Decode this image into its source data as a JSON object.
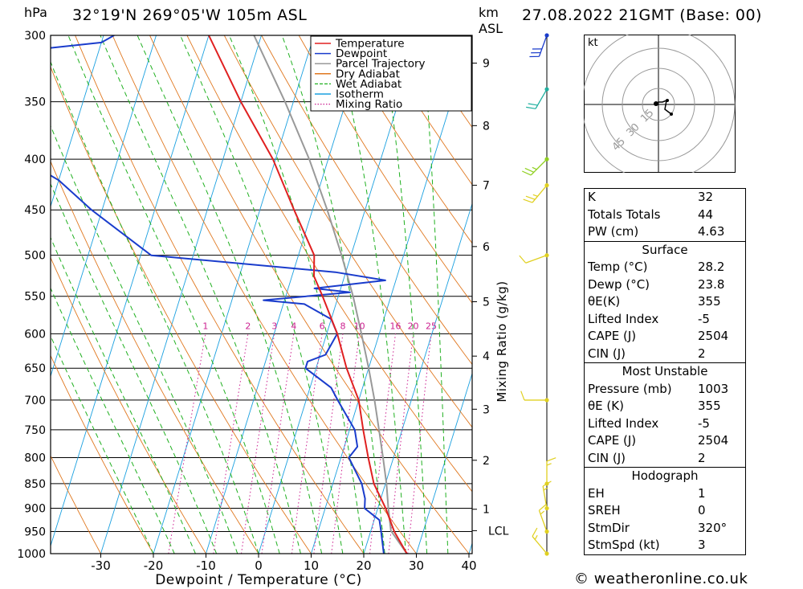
{
  "header": {
    "hpa_label": "hPa",
    "location": "32°19'N  269°05'W  105m  ASL",
    "km_label": "km",
    "asl_label": "ASL",
    "datetime": "27.08.2022  21GMT  (Base: 00)"
  },
  "footer": {
    "copyright": "© weatheronline.co.uk"
  },
  "hodograph": {
    "unit_label": "kt",
    "ring_labels": [
      "15",
      "30",
      "45"
    ]
  },
  "indices": {
    "top": [
      {
        "label": "K",
        "value": "32"
      },
      {
        "label": "Totals Totals",
        "value": "44"
      },
      {
        "label": "PW (cm)",
        "value": "4.63"
      }
    ],
    "surface": {
      "title": "Surface",
      "rows": [
        {
          "label": "Temp (°C)",
          "value": "28.2"
        },
        {
          "label": "Dewp (°C)",
          "value": "23.8"
        },
        {
          "label": "θE(K)",
          "value": "355"
        },
        {
          "label": "Lifted Index",
          "value": "-5"
        },
        {
          "label": "CAPE (J)",
          "value": "2504"
        },
        {
          "label": "CIN (J)",
          "value": "2"
        }
      ]
    },
    "most_unstable": {
      "title": "Most Unstable",
      "rows": [
        {
          "label": "Pressure (mb)",
          "value": "1003"
        },
        {
          "label": "θE (K)",
          "value": "355"
        },
        {
          "label": "Lifted Index",
          "value": "-5"
        },
        {
          "label": "CAPE (J)",
          "value": "2504"
        },
        {
          "label": "CIN (J)",
          "value": "2"
        }
      ]
    },
    "hodograph": {
      "title": "Hodograph",
      "rows": [
        {
          "label": "EH",
          "value": "1"
        },
        {
          "label": "SREH",
          "value": "0"
        },
        {
          "label": "StmDir",
          "value": "320°"
        },
        {
          "label": "StmSpd (kt)",
          "value": "3"
        }
      ]
    }
  },
  "chart_data": {
    "type": "line",
    "subtype": "skew-T log-P sounding",
    "xlabel": "Dewpoint / Temperature (°C)",
    "ylabel": "hPa",
    "mixing_ratio_axis_label": "Mixing Ratio (g/kg)",
    "x_ticks": [
      -30,
      -20,
      -10,
      0,
      10,
      20,
      30,
      40
    ],
    "pressure_levels": [
      300,
      350,
      400,
      450,
      500,
      550,
      600,
      650,
      700,
      750,
      800,
      850,
      900,
      950,
      1000
    ],
    "km_ticks": [
      {
        "km": "1",
        "p": 902
      },
      {
        "km": "2",
        "p": 805
      },
      {
        "km": "3",
        "p": 715
      },
      {
        "km": "4",
        "p": 632
      },
      {
        "km": "5",
        "p": 557
      },
      {
        "km": "6",
        "p": 490
      },
      {
        "km": "7",
        "p": 425
      },
      {
        "km": "8",
        "p": 370
      },
      {
        "km": "9",
        "p": 320
      }
    ],
    "lcl_label": "LCL",
    "lcl_pressure": 948,
    "mixing_ratio_labels": [
      "1",
      "2",
      "3",
      "4",
      "6",
      "8",
      "10",
      "16",
      "20",
      "25"
    ],
    "legend": [
      {
        "name": "Temperature",
        "color": "#e02020",
        "style": "solid"
      },
      {
        "name": "Dewpoint",
        "color": "#1a3ccc",
        "style": "solid"
      },
      {
        "name": "Parcel Trajectory",
        "color": "#999999",
        "style": "solid"
      },
      {
        "name": "Dry Adiabat",
        "color": "#e07820",
        "style": "solid"
      },
      {
        "name": "Wet Adiabat",
        "color": "#20b020",
        "style": "dashed"
      },
      {
        "name": "Isotherm",
        "color": "#1aa0e0",
        "style": "solid"
      },
      {
        "name": "Mixing Ratio",
        "color": "#cc2090",
        "style": "dotted"
      }
    ],
    "legend_position": "top-right",
    "temperature": {
      "p": [
        1000,
        950,
        900,
        850,
        800,
        750,
        700,
        650,
        600,
        550,
        525,
        500,
        450,
        400,
        350,
        300
      ],
      "t": [
        28.2,
        24.5,
        21.5,
        17.8,
        15.2,
        12.6,
        10.0,
        5.8,
        2.0,
        -3.0,
        -5.8,
        -7.0,
        -13.5,
        -20.5,
        -30.0,
        -40.0
      ]
    },
    "dewpoint": {
      "p": [
        1000,
        950,
        925,
        900,
        880,
        850,
        800,
        780,
        750,
        700,
        680,
        650,
        640,
        630,
        600,
        580,
        560,
        555,
        545,
        540,
        530,
        520,
        500,
        450,
        420,
        400,
        380,
        350,
        330,
        310,
        305,
        300
      ],
      "td": [
        23.8,
        22.0,
        21.0,
        17.5,
        17.0,
        15.5,
        11.5,
        12.5,
        11.0,
        6.0,
        4.0,
        -2.0,
        -2.0,
        1.0,
        2.0,
        0.0,
        -6.0,
        -14.0,
        2.0,
        -5.0,
        8.0,
        -2.0,
        -38.0,
        -52.0,
        -60.0,
        -68.0,
        -82.0,
        -108.0,
        -90.0,
        -72.0,
        -60.0,
        -58.0
      ]
    },
    "parcel": {
      "p": [
        1000,
        948,
        900,
        850,
        800,
        750,
        700,
        650,
        600,
        550,
        500,
        450,
        400,
        350,
        300
      ],
      "t": [
        28.2,
        23.8,
        22.0,
        20.2,
        18.0,
        15.6,
        13.0,
        10.0,
        6.6,
        2.8,
        -1.8,
        -7.2,
        -13.6,
        -21.6,
        -31.4
      ]
    },
    "wind_barbs": [
      {
        "p": 1000,
        "dir": 320,
        "kt": 5
      },
      {
        "p": 950,
        "dir": 340,
        "kt": 5
      },
      {
        "p": 900,
        "dir": 350,
        "kt": 5
      },
      {
        "p": 850,
        "dir": 0,
        "kt": 5
      },
      {
        "p": 700,
        "dir": 270,
        "kt": 10
      },
      {
        "p": 500,
        "dir": 250,
        "kt": 10
      },
      {
        "p": 425,
        "dir": 220,
        "kt": 15
      },
      {
        "p": 400,
        "dir": 225,
        "kt": 15
      },
      {
        "p": 340,
        "dir": 210,
        "kt": 20
      },
      {
        "p": 300,
        "dir": 200,
        "kt": 30
      }
    ]
  }
}
